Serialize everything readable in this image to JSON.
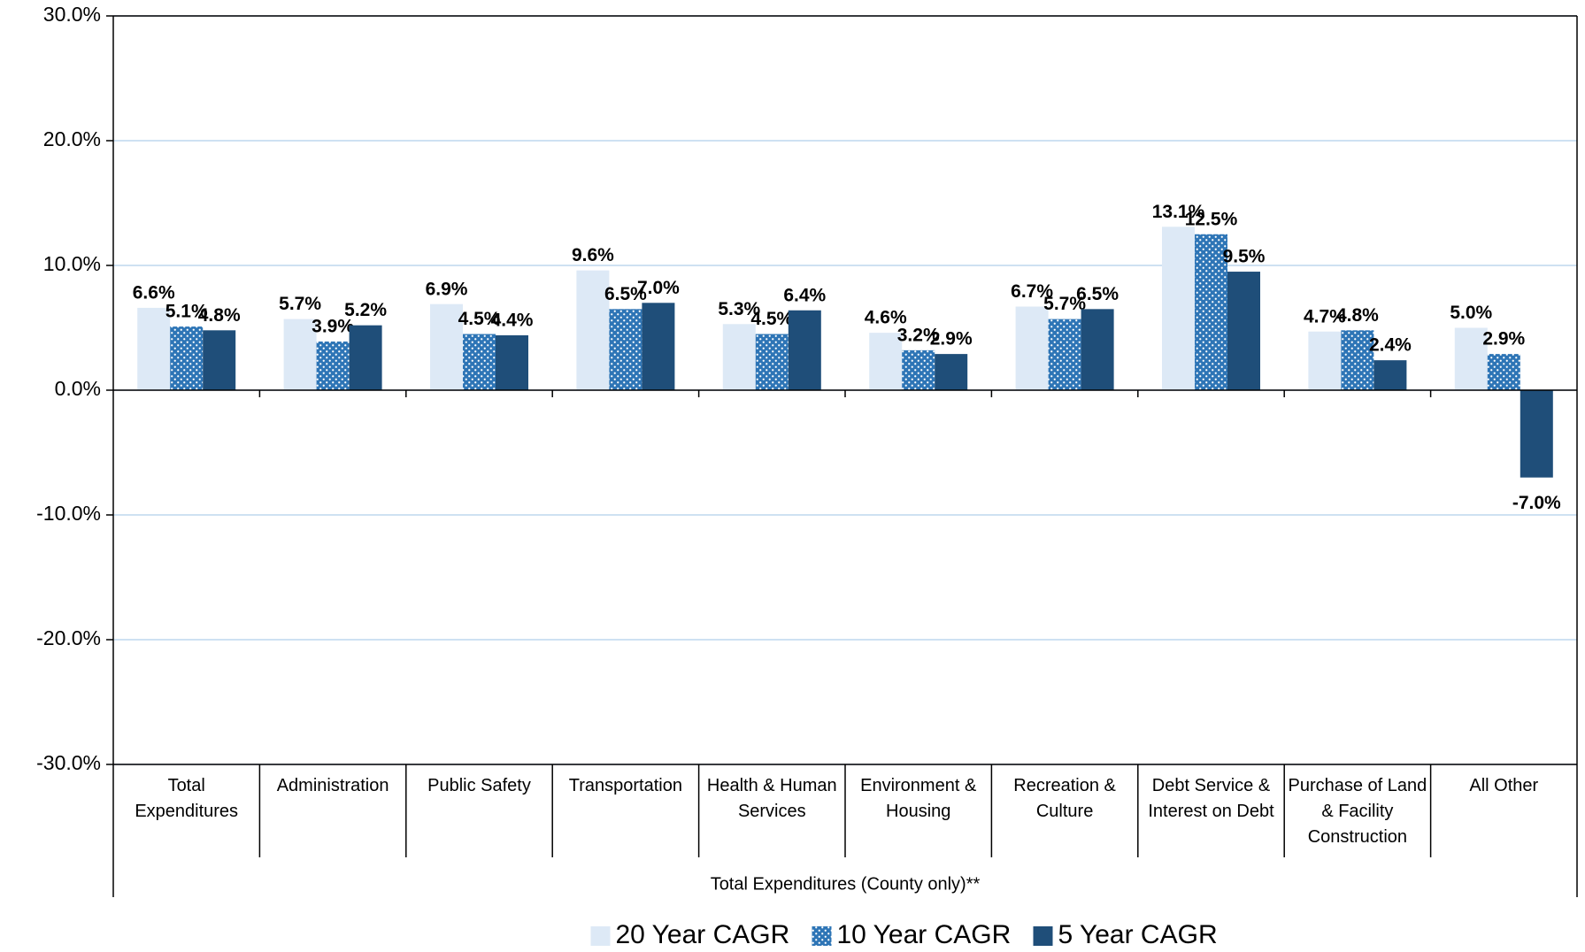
{
  "chart_data": {
    "type": "bar",
    "xlabel": "Total Expenditures (County only)**",
    "categories": [
      "Total Expenditures",
      "Administration",
      "Public Safety",
      "Transportation",
      "Health & Human Services",
      "Environment & Housing",
      "Recreation & Culture",
      "Debt Service & Interest on Debt",
      "Purchase of Land & Facility Construction",
      "All Other"
    ],
    "series": [
      {
        "name": "20 Year CAGR",
        "color": "#dde9f6",
        "values": [
          6.6,
          5.7,
          6.9,
          9.6,
          5.3,
          4.6,
          6.7,
          13.1,
          4.7,
          5.0
        ],
        "value_labels": [
          "6.6%",
          "5.7%",
          "6.9%",
          "9.6%",
          "5.3%",
          "4.6%",
          "6.7%",
          "13.1%",
          "4.7%",
          "5.0%"
        ]
      },
      {
        "name": "10 Year CAGR",
        "color": "#2e75b6",
        "pattern": "dots",
        "values": [
          5.1,
          3.9,
          4.5,
          6.5,
          4.5,
          3.2,
          5.7,
          12.5,
          4.8,
          2.9
        ],
        "value_labels": [
          "5.1%",
          "3.9%",
          "4.5%",
          "6.5%",
          "4.5%",
          "3.2%",
          "5.7%",
          "12.5%",
          "4.8%",
          "2.9%"
        ]
      },
      {
        "name": "5 Year CAGR",
        "color": "#1f4e79",
        "values": [
          4.8,
          5.2,
          4.4,
          7.0,
          6.4,
          2.9,
          6.5,
          9.5,
          2.4,
          -7.0
        ],
        "value_labels": [
          "4.8%",
          "5.2%",
          "4.4%",
          "7.0%",
          "6.4%",
          "2.9%",
          "6.5%",
          "9.5%",
          "2.4%",
          "-7.0%"
        ]
      }
    ],
    "ylim": [
      -30,
      30
    ],
    "yticks": [
      {
        "value": -30,
        "label": "-30.0%"
      },
      {
        "value": -20,
        "label": "-20.0%"
      },
      {
        "value": -10,
        "label": "-10.0%"
      },
      {
        "value": 0,
        "label": "0.0%"
      },
      {
        "value": 10,
        "label": "10.0%"
      },
      {
        "value": 20,
        "label": "20.0%"
      },
      {
        "value": 30,
        "label": "30.0%"
      }
    ],
    "grid": true,
    "legend": "bottom"
  }
}
